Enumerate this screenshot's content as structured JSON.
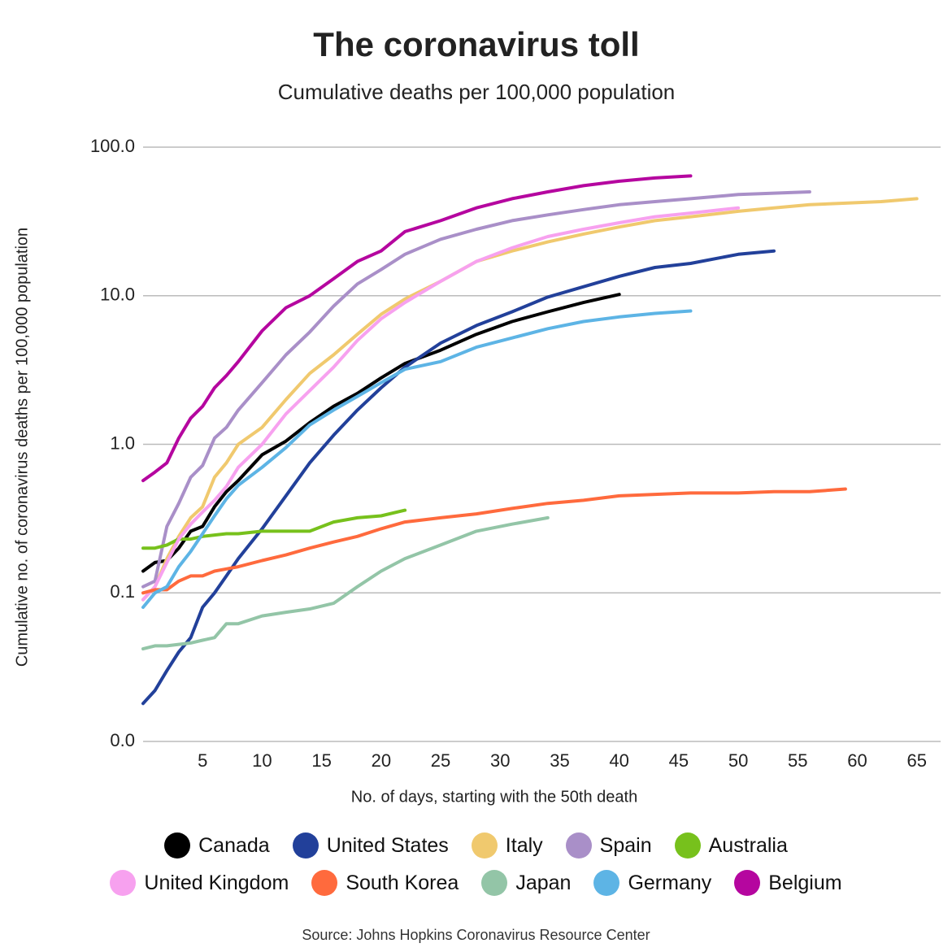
{
  "chart_data": {
    "type": "line",
    "title": "The coronavirus toll",
    "subtitle": "Cumulative deaths per 100,000 population",
    "x_label": "No. of days, starting with the 50th death",
    "y_label": "Cumulative no. of coronavirus deaths per 100,000 population",
    "source": "Source: Johns Hopkins Coronavirus Resource Center",
    "log_scale": true,
    "grid": true,
    "xlim": [
      0,
      67
    ],
    "xticks": [
      5,
      10,
      15,
      20,
      25,
      30,
      35,
      40,
      45,
      50,
      55,
      60,
      65
    ],
    "ylim": [
      0.01,
      100
    ],
    "yticks": [
      {
        "value": 100,
        "label": "100.0"
      },
      {
        "value": 10,
        "label": "10.0"
      },
      {
        "value": 1,
        "label": "1.0"
      },
      {
        "value": 0.1,
        "label": "0.1"
      },
      {
        "value": 0.01,
        "label": "0.0"
      }
    ],
    "x": [
      0,
      1,
      2,
      3,
      4,
      5,
      6,
      7,
      8,
      10,
      12,
      14,
      16,
      18,
      20,
      22,
      25,
      28,
      31,
      34,
      37,
      40,
      43,
      46,
      50,
      53,
      56,
      59,
      62,
      65
    ],
    "series": [
      {
        "name": "Canada",
        "color": "#000000",
        "values": [
          0.14,
          0.16,
          0.165,
          0.2,
          0.26,
          0.28,
          0.38,
          0.48,
          0.57,
          0.85,
          1.05,
          1.4,
          1.8,
          2.2,
          2.8,
          3.5,
          4.3,
          5.5,
          6.7,
          7.8,
          9.0,
          10.2,
          null,
          null,
          null,
          null,
          null,
          null,
          null,
          null
        ]
      },
      {
        "name": "United States",
        "color": "#22409a",
        "values": [
          0.018,
          0.022,
          0.03,
          0.04,
          0.05,
          0.08,
          0.1,
          0.13,
          0.17,
          0.27,
          0.45,
          0.75,
          1.15,
          1.7,
          2.4,
          3.3,
          4.8,
          6.3,
          7.8,
          9.8,
          11.5,
          13.5,
          15.5,
          16.5,
          19,
          20,
          null,
          null,
          null,
          null
        ]
      },
      {
        "name": "Italy",
        "color": "#f0c96e",
        "values": [
          0.09,
          0.11,
          0.17,
          0.24,
          0.32,
          0.38,
          0.6,
          0.75,
          1.0,
          1.3,
          2.0,
          3.0,
          4.0,
          5.5,
          7.5,
          9.5,
          12.5,
          17,
          20,
          23,
          26,
          29,
          32,
          34,
          37,
          39,
          41,
          42,
          43,
          45
        ]
      },
      {
        "name": "Spain",
        "color": "#a98fc8",
        "values": [
          0.11,
          0.12,
          0.28,
          0.4,
          0.6,
          0.72,
          1.1,
          1.3,
          1.7,
          2.6,
          4.0,
          5.7,
          8.5,
          12,
          15,
          19,
          24,
          28,
          32,
          35,
          38,
          41,
          43,
          45,
          48,
          49,
          50,
          null,
          null,
          null
        ]
      },
      {
        "name": "Australia",
        "color": "#77c11c",
        "values": [
          0.2,
          0.2,
          0.21,
          0.23,
          0.23,
          0.24,
          0.245,
          0.25,
          0.25,
          0.26,
          0.26,
          0.26,
          0.3,
          0.32,
          0.33,
          0.36,
          null,
          null,
          null,
          null,
          null,
          null,
          null,
          null,
          null,
          null,
          null,
          null,
          null,
          null
        ]
      },
      {
        "name": "United Kingdom",
        "color": "#f7a1ef",
        "values": [
          0.09,
          0.11,
          0.16,
          0.23,
          0.29,
          0.35,
          0.42,
          0.52,
          0.7,
          1.0,
          1.6,
          2.3,
          3.3,
          5.0,
          7.0,
          9,
          12.5,
          17,
          21,
          25,
          28,
          31,
          34,
          36,
          39,
          null,
          null,
          null,
          null,
          null
        ]
      },
      {
        "name": "South Korea",
        "color": "#ff6a3d",
        "values": [
          0.1,
          0.105,
          0.105,
          0.12,
          0.13,
          0.13,
          0.14,
          0.145,
          0.15,
          0.165,
          0.18,
          0.2,
          0.22,
          0.24,
          0.27,
          0.3,
          0.32,
          0.34,
          0.37,
          0.4,
          0.42,
          0.45,
          0.46,
          0.47,
          0.47,
          0.48,
          0.48,
          0.5,
          null,
          null
        ]
      },
      {
        "name": "Japan",
        "color": "#93c5a7",
        "values": [
          0.042,
          0.044,
          0.044,
          0.045,
          0.046,
          0.048,
          0.05,
          0.062,
          0.062,
          0.07,
          0.074,
          0.078,
          0.085,
          0.11,
          0.14,
          0.17,
          0.21,
          0.26,
          0.29,
          0.32,
          null,
          null,
          null,
          null,
          null,
          null,
          null,
          null,
          null,
          null
        ]
      },
      {
        "name": "Germany",
        "color": "#5db4e5",
        "values": [
          0.08,
          0.1,
          0.11,
          0.15,
          0.19,
          0.25,
          0.33,
          0.43,
          0.53,
          0.7,
          0.95,
          1.35,
          1.7,
          2.1,
          2.6,
          3.2,
          3.6,
          4.5,
          5.2,
          6.0,
          6.7,
          7.2,
          7.6,
          7.9,
          null,
          null,
          null,
          null,
          null,
          null
        ]
      },
      {
        "name": "Belgium",
        "color": "#b5069f",
        "values": [
          0.57,
          0.65,
          0.75,
          1.1,
          1.5,
          1.8,
          2.4,
          2.9,
          3.6,
          5.8,
          8.3,
          10,
          13,
          17,
          20,
          27,
          32,
          39,
          45,
          50,
          55,
          59,
          62,
          64,
          null,
          null,
          null,
          null,
          null,
          null
        ]
      }
    ]
  }
}
